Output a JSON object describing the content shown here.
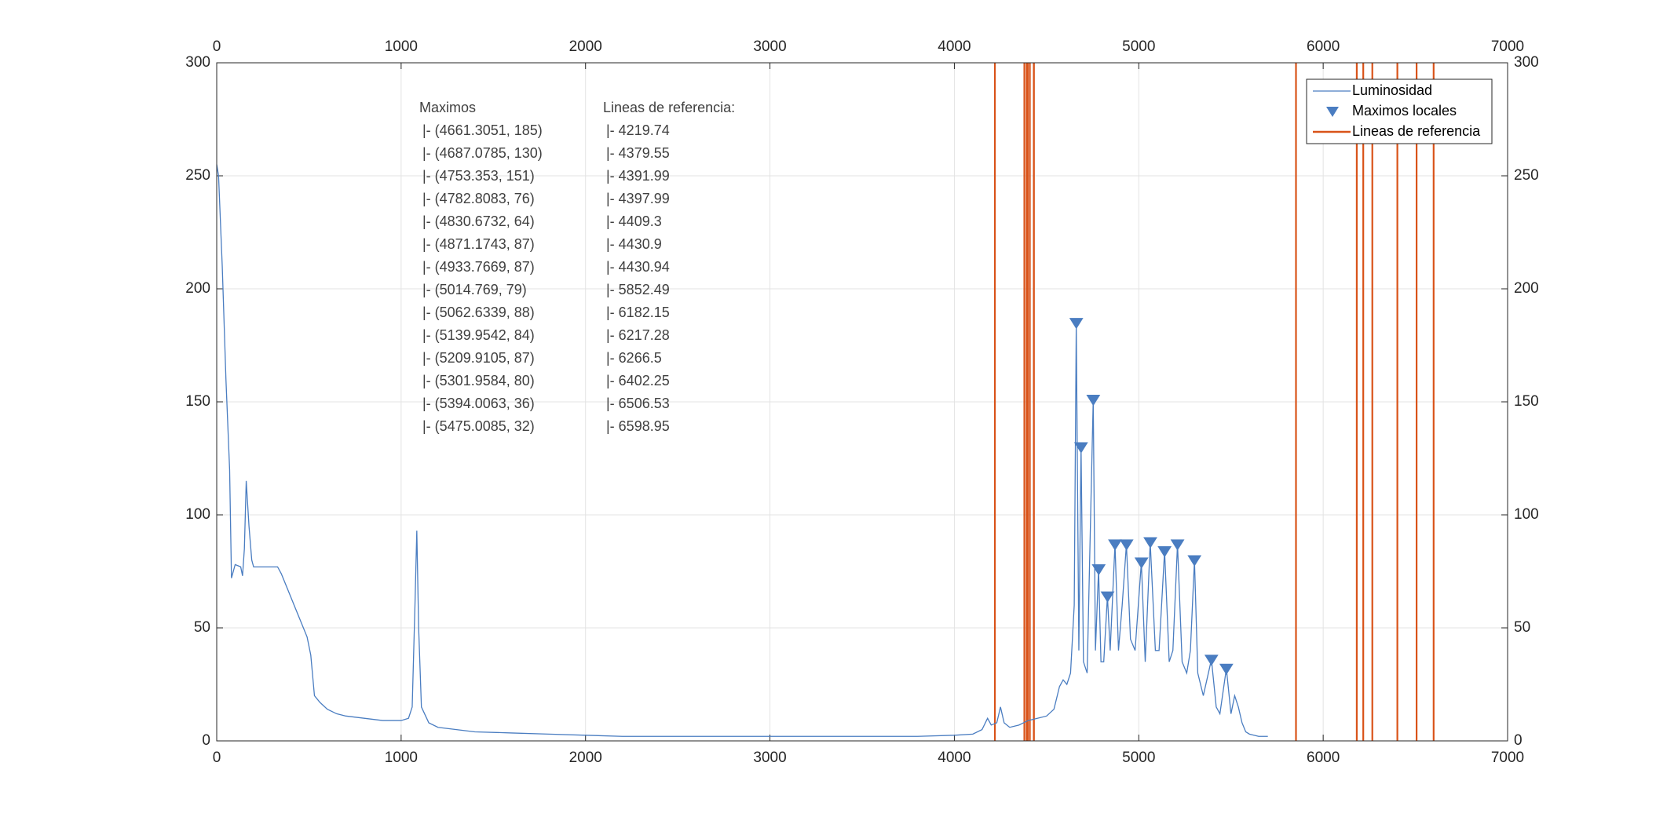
{
  "chart_data": {
    "type": "line",
    "xlim": [
      0,
      7000
    ],
    "xticks": [
      0,
      1000,
      2000,
      3000,
      4000,
      5000,
      6000,
      7000
    ],
    "ylim": [
      0,
      300
    ],
    "yticks": [
      0,
      50,
      100,
      150,
      200,
      250,
      300
    ],
    "grid": true,
    "legend": "northeast",
    "series": [
      {
        "name": "Luminosidad",
        "style": "line",
        "color": "#4a7dc1",
        "x": [
          0,
          10,
          30,
          50,
          70,
          80,
          90,
          100,
          130,
          140,
          150,
          160,
          175,
          190,
          200,
          250,
          300,
          330,
          350,
          380,
          420,
          460,
          490,
          510,
          530,
          560,
          600,
          650,
          700,
          800,
          900,
          1000,
          1040,
          1060,
          1075,
          1085,
          1095,
          1110,
          1150,
          1200,
          1300,
          1400,
          1600,
          1800,
          2000,
          2200,
          2500,
          3000,
          3500,
          3800,
          4000,
          4100,
          4150,
          4180,
          4200,
          4230,
          4250,
          4270,
          4300,
          4350,
          4400,
          4450,
          4500,
          4540,
          4570,
          4590,
          4610,
          4630,
          4650,
          4661,
          4675,
          4687,
          4700,
          4720,
          4753,
          4765,
          4782,
          4795,
          4810,
          4830,
          4845,
          4871,
          4890,
          4910,
          4933,
          4955,
          4980,
          5014,
          5035,
          5062,
          5090,
          5110,
          5140,
          5165,
          5185,
          5210,
          5235,
          5260,
          5280,
          5302,
          5320,
          5350,
          5394,
          5420,
          5440,
          5475,
          5500,
          5520,
          5540,
          5560,
          5580,
          5600,
          5650,
          5700
        ],
        "values": [
          255,
          250,
          210,
          160,
          120,
          72,
          75,
          78,
          77,
          73,
          85,
          115,
          95,
          80,
          77,
          77,
          77,
          77,
          74,
          68,
          60,
          52,
          46,
          38,
          20,
          17,
          14,
          12,
          11,
          10,
          9,
          9,
          10,
          15,
          60,
          93,
          50,
          15,
          8,
          6,
          5,
          4,
          3.5,
          3,
          2.5,
          2,
          2,
          2,
          2,
          2,
          2.5,
          3,
          5,
          10,
          7,
          8,
          15,
          8,
          6,
          7,
          9,
          10,
          11,
          14,
          24,
          27,
          25,
          30,
          60,
          185,
          40,
          130,
          35,
          30,
          151,
          40,
          76,
          35,
          35,
          64,
          40,
          87,
          40,
          60,
          87,
          45,
          40,
          79,
          35,
          88,
          40,
          40,
          84,
          35,
          40,
          87,
          35,
          30,
          40,
          80,
          30,
          20,
          36,
          15,
          12,
          32,
          12,
          20,
          15,
          8,
          4,
          3,
          2,
          2
        ]
      },
      {
        "name": "Maximos locales",
        "style": "marker",
        "color": "#4a7dc1",
        "x": [
          4661.3051,
          4687.0785,
          4753.353,
          4782.8083,
          4830.6732,
          4871.1743,
          4933.7669,
          5014.769,
          5062.6339,
          5139.9542,
          5209.9105,
          5301.9584,
          5394.0063,
          5475.0085
        ],
        "values": [
          185,
          130,
          151,
          76,
          64,
          87,
          87,
          79,
          88,
          84,
          87,
          80,
          36,
          32
        ]
      },
      {
        "name": "Lineas de referencia",
        "style": "vline",
        "color": "#d95319",
        "x": [
          4219.74,
          4379.55,
          4391.99,
          4397.99,
          4409.3,
          4430.9,
          4430.94,
          5852.49,
          6182.15,
          6217.28,
          6266.5,
          6402.25,
          6506.53,
          6598.95
        ]
      }
    ],
    "annotations": [
      {
        "title": "Maximos",
        "lines": [
          "|- (4661.3051, 185)",
          "|- (4687.0785, 130)",
          "|- (4753.353, 151)",
          "|- (4782.8083, 76)",
          "|- (4830.6732, 64)",
          "|- (4871.1743, 87)",
          "|- (4933.7669, 87)",
          "|- (5014.769, 79)",
          "|- (5062.6339, 88)",
          "|- (5139.9542, 84)",
          "|- (5209.9105, 87)",
          "|- (5301.9584, 80)",
          "|- (5394.0063, 36)",
          "|- (5475.0085, 32)"
        ]
      },
      {
        "title": "Lineas de referencia:",
        "lines": [
          "|- 4219.74",
          "|- 4379.55",
          "|- 4391.99",
          "|- 4397.99",
          "|- 4409.3",
          "|- 4430.9",
          "|- 4430.94",
          "|- 5852.49",
          "|- 6182.15",
          "|- 6217.28",
          "|- 6266.5",
          "|- 6402.25",
          "|- 6506.53",
          "|- 6598.95"
        ]
      }
    ]
  }
}
